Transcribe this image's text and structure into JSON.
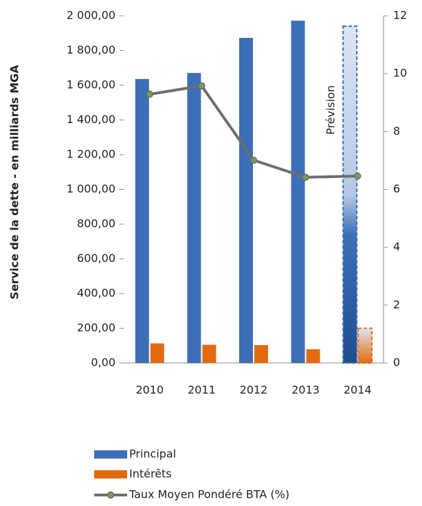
{
  "chart_data": {
    "type": "bar",
    "categories": [
      "2010",
      "2011",
      "2012",
      "2013",
      "2014"
    ],
    "y_label": "Service de la dette - en milliards MGA",
    "annotation": "Prévision",
    "series": [
      {
        "name": "Principal",
        "color": "#3d6fb6",
        "values": [
          1636,
          1671,
          1873,
          1972,
          1940
        ]
      },
      {
        "name": "Intérêts",
        "color": "#e26b10",
        "values": [
          113,
          105,
          103,
          79,
          200
        ]
      },
      {
        "name": "Taux Moyen Pondéré BTA (%)",
        "type": "line",
        "axis": "y2",
        "color": "#6d6d6d",
        "marker_color": "#7b9a5a",
        "values": [
          9.29,
          9.58,
          7.01,
          6.42,
          6.46
        ]
      }
    ],
    "ylim": [
      0,
      2000
    ],
    "yticks": [
      {
        "value": 0,
        "label": "0,00"
      },
      {
        "value": 200,
        "label": "200,00"
      },
      {
        "value": 400,
        "label": "400,00"
      },
      {
        "value": 600,
        "label": "600,00"
      },
      {
        "value": 800,
        "label": "800,00"
      },
      {
        "value": 1000,
        "label": "1 000,00"
      },
      {
        "value": 1200,
        "label": "1 200,00"
      },
      {
        "value": 1400,
        "label": "1 400,00"
      },
      {
        "value": 1600,
        "label": "1 600,00"
      },
      {
        "value": 1800,
        "label": "1 800,00"
      },
      {
        "value": 2000,
        "label": "2 000,00"
      }
    ],
    "y2lim": [
      0,
      12
    ],
    "y2ticks": [
      0,
      2,
      4,
      6,
      8,
      10,
      12
    ]
  }
}
